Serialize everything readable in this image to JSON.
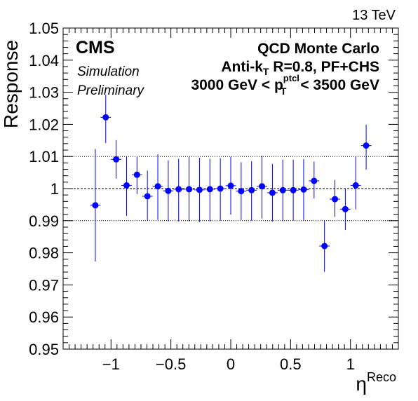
{
  "energy_label": "13 TeV",
  "cms_label": "CMS",
  "simulation_label": "Simulation",
  "preliminary_label": "Preliminary",
  "info": {
    "line1": "QCD Monte Carlo",
    "line2_prefix": "Anti-k",
    "line2_sub": "T",
    "line2_suffix": " R=0.8, PF+CHS",
    "line3_prefix": "3000 GeV < p",
    "line3_sup": "ptcl",
    "line3_sub": "T",
    "line3_suffix": " < 3500 GeV"
  },
  "chart_data": {
    "type": "scatter",
    "ylabel": "Response",
    "xlabel_base": "η",
    "xlabel_sup": "Reco",
    "xlim": [
      -1.4,
      1.4
    ],
    "ylim": [
      0.95,
      1.05
    ],
    "x_ticks": [
      -1,
      -0.5,
      0,
      0.5,
      1
    ],
    "x_tick_labels": [
      "−1",
      "−0.5",
      "0",
      "0.5",
      "1"
    ],
    "y_ticks": [
      0.95,
      0.96,
      0.97,
      0.98,
      0.99,
      1,
      1.01,
      1.02,
      1.03,
      1.04,
      1.05
    ],
    "y_tick_labels": [
      "0.95",
      "0.96",
      "0.97",
      "0.98",
      "0.99",
      "1",
      "1.01",
      "1.02",
      "1.03",
      "1.04",
      "1.05"
    ],
    "reference_lines": [
      0.99,
      1.0,
      1.01
    ],
    "bin_half_width": 0.0435,
    "x": [
      -1.131,
      -1.044,
      -0.957,
      -0.87,
      -0.783,
      -0.696,
      -0.609,
      -0.522,
      -0.435,
      -0.348,
      -0.261,
      -0.174,
      -0.087,
      0.0,
      0.087,
      0.174,
      0.261,
      0.348,
      0.435,
      0.522,
      0.609,
      0.696,
      0.783,
      0.87,
      0.957,
      1.044,
      1.131
    ],
    "values": [
      0.9948,
      1.0222,
      1.0091,
      1.001,
      1.0043,
      0.9976,
      1.0007,
      0.9993,
      0.9998,
      0.9998,
      0.9996,
      0.9998,
      1.0,
      1.0009,
      0.9992,
      0.9995,
      1.0007,
      0.9987,
      0.9995,
      0.9995,
      0.9997,
      1.0024,
      0.9821,
      0.9967,
      0.9936,
      1.001,
      1.0134
    ],
    "errors_low": [
      0.0175,
      0.008,
      0.006,
      0.0095,
      0.006,
      0.0075,
      0.0105,
      0.0095,
      0.01,
      0.01,
      0.01,
      0.01,
      0.01,
      0.009,
      0.009,
      0.0095,
      0.01,
      0.009,
      0.0095,
      0.0095,
      0.0095,
      0.0055,
      0.008,
      0.0055,
      0.0065,
      0.0075,
      0.0075
    ],
    "errors_high": [
      0.0175,
      0.007,
      0.006,
      0.009,
      0.0055,
      0.008,
      0.01,
      0.0095,
      0.0095,
      0.01,
      0.01,
      0.0095,
      0.0095,
      0.009,
      0.009,
      0.009,
      0.0095,
      0.009,
      0.0095,
      0.0095,
      0.0095,
      0.006,
      0.008,
      0.006,
      0.0065,
      0.009,
      0.0065
    ],
    "marker_color": "#0000ff",
    "grid": false
  }
}
